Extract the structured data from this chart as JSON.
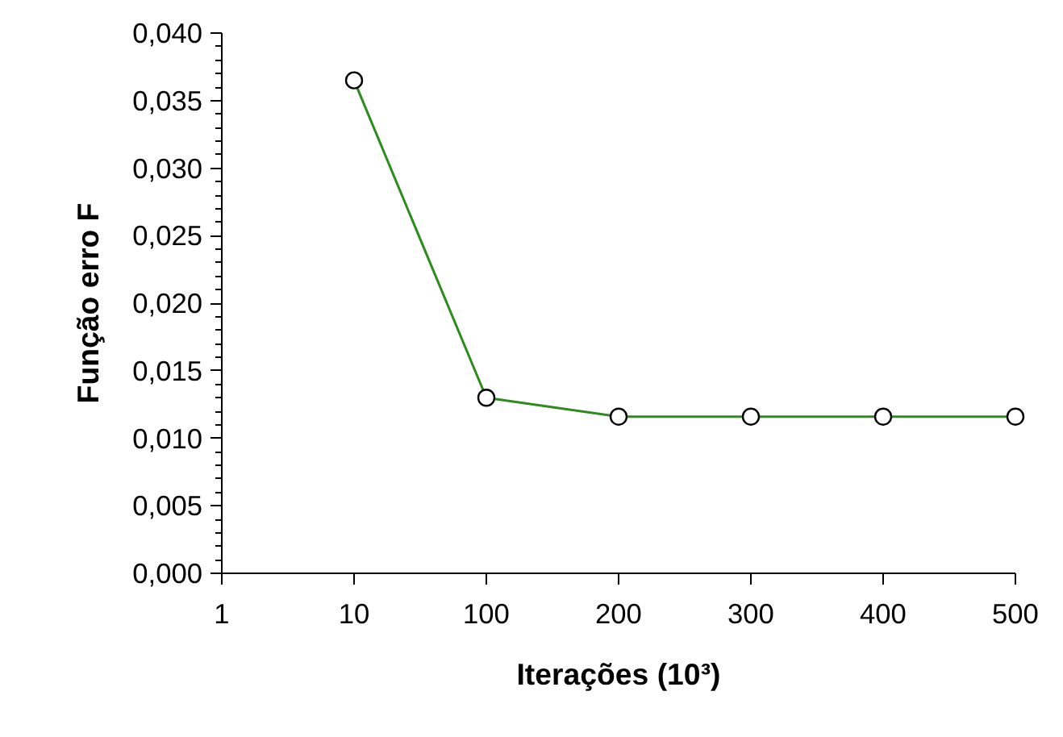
{
  "chart_data": {
    "type": "line",
    "xlabel": "Iterações (10³)",
    "ylabel": "Função erro F",
    "categories": [
      "1",
      "10",
      "100",
      "200",
      "300",
      "400",
      "500"
    ],
    "series": [
      {
        "color": "#2e8b1e",
        "values": [
          null,
          0.0365,
          0.013,
          0.0116,
          0.0116,
          0.0116,
          0.0116
        ]
      }
    ],
    "ylim": [
      0,
      0.04
    ],
    "yticks": [
      {
        "value": 0,
        "label": "0,000"
      },
      {
        "value": 0.005,
        "label": "0,005"
      },
      {
        "value": 0.01,
        "label": "0,010"
      },
      {
        "value": 0.015,
        "label": "0,015"
      },
      {
        "value": 0.02,
        "label": "0,020"
      },
      {
        "value": 0.025,
        "label": "0,025"
      },
      {
        "value": 0.03,
        "label": "0,030"
      },
      {
        "value": 0.035,
        "label": "0,035"
      },
      {
        "value": 0.04,
        "label": "0,040"
      }
    ],
    "marker": "circle",
    "line_style": "solid",
    "grid": false
  }
}
